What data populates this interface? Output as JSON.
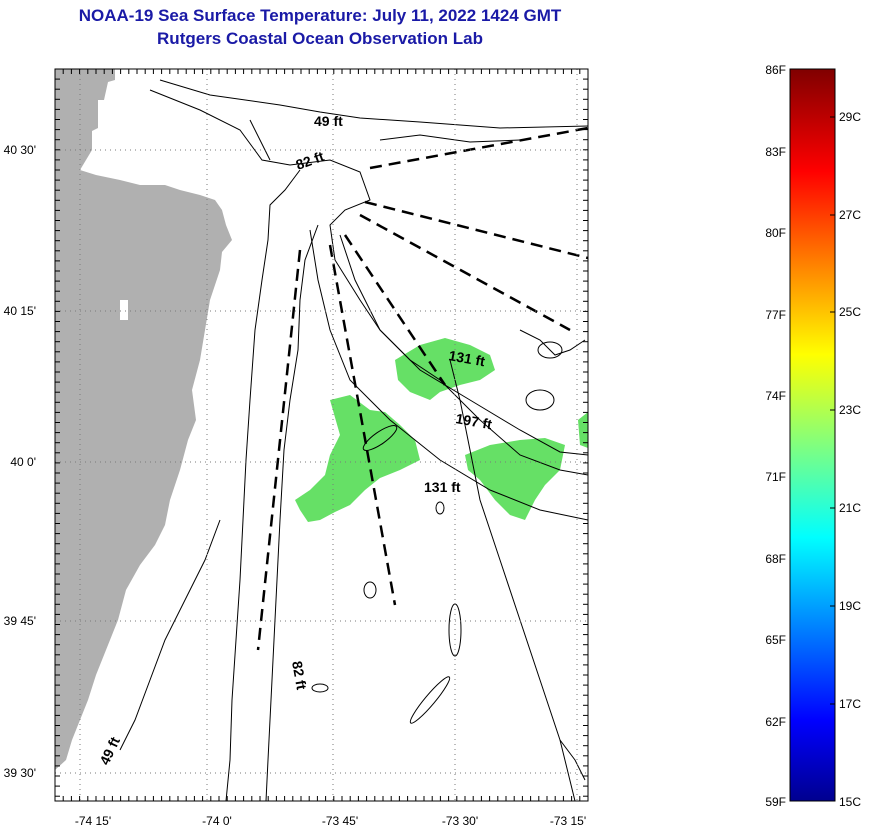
{
  "title": "NOAA-19 Sea Surface Temperature:  July 11, 2022 1424 GMT",
  "subtitle": "Rutgers Coastal Ocean Observation Lab",
  "lat_labels": [
    "40 30'",
    "40 15'",
    "40 0'",
    "39 45'",
    "39 30'"
  ],
  "lon_labels": [
    "-74 15'",
    "-74 0'",
    "-73 45'",
    "-73 30'",
    "-73 15'"
  ],
  "depth_labels": [
    "49 ft",
    "82 ft",
    "131 ft",
    "197 ft",
    "131 ft",
    "82 ft",
    "49 ft"
  ],
  "colorbar": {
    "f_labels": [
      "86F",
      "83F",
      "80F",
      "77F",
      "74F",
      "71F",
      "68F",
      "65F",
      "62F",
      "59F"
    ],
    "c_labels": [
      "29C",
      "27C",
      "25C",
      "23C",
      "21C",
      "19C",
      "17C",
      "15C"
    ],
    "range_f": [
      59,
      86
    ],
    "range_c": [
      15,
      30
    ]
  },
  "colors": {
    "title": "#1a1aa6",
    "land": "#b0b0b0",
    "sst_patch": "#66e066",
    "grid": "#7a7a7a"
  }
}
